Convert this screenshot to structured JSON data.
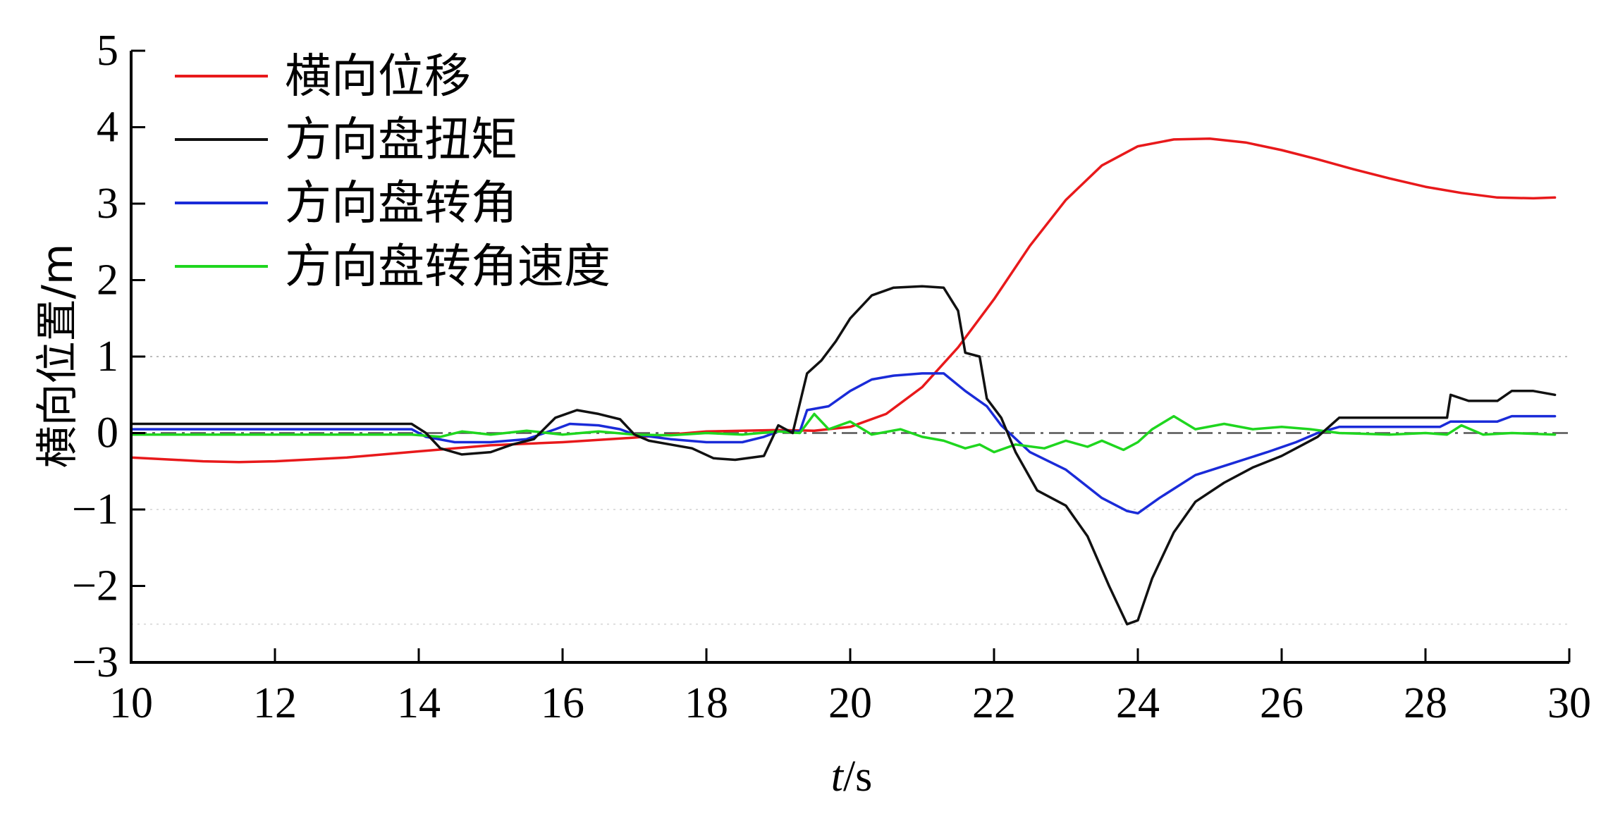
{
  "chart_data": {
    "type": "line",
    "title": "",
    "xlabel": "t/s",
    "xlabel_parts": {
      "var": "t",
      "unit": "/s"
    },
    "ylabel": "横向位置/m",
    "xlim": [
      10,
      30
    ],
    "ylim": [
      -3,
      5
    ],
    "xticks": [
      10,
      12,
      14,
      16,
      18,
      20,
      22,
      24,
      26,
      28,
      30
    ],
    "yticks": [
      5,
      4,
      3,
      2,
      1,
      0,
      -1,
      -2,
      -3
    ],
    "ytick_labels": [
      "5",
      "4",
      "3",
      "2",
      "1",
      "0",
      "−1",
      "−2",
      "−3"
    ],
    "grid": false,
    "legend_position": "top-left",
    "reference_lines": [
      {
        "y": 1,
        "style": "dotted",
        "color": "#bdbdbd"
      },
      {
        "y": -1,
        "style": "dotted",
        "color": "#dddddd"
      },
      {
        "y": -2.5,
        "style": "dotted",
        "color": "#dddddd"
      },
      {
        "y": 0,
        "style": "dashdot",
        "color": "#555555"
      }
    ],
    "series": [
      {
        "name": "横向位移",
        "color": "#e8191b",
        "x": [
          10.0,
          11.0,
          11.5,
          12.0,
          13.0,
          14.0,
          15.0,
          16.0,
          17.0,
          18.0,
          19.0,
          19.5,
          20.0,
          20.5,
          21.0,
          21.5,
          22.0,
          22.5,
          23.0,
          23.5,
          24.0,
          24.5,
          25.0,
          25.5,
          26.0,
          26.5,
          27.0,
          27.5,
          28.0,
          28.5,
          29.0,
          29.5,
          29.8
        ],
        "y": [
          -0.32,
          -0.37,
          -0.38,
          -0.37,
          -0.32,
          -0.24,
          -0.16,
          -0.12,
          -0.06,
          0.02,
          0.04,
          0.03,
          0.08,
          0.25,
          0.6,
          1.12,
          1.75,
          2.45,
          3.05,
          3.5,
          3.75,
          3.84,
          3.85,
          3.8,
          3.7,
          3.58,
          3.45,
          3.33,
          3.22,
          3.14,
          3.08,
          3.07,
          3.08
        ]
      },
      {
        "name": "方向盘扭矩",
        "color": "#111111",
        "x": [
          10.0,
          13.9,
          14.1,
          14.3,
          14.6,
          15.0,
          15.3,
          15.6,
          15.9,
          16.2,
          16.5,
          16.8,
          17.0,
          17.2,
          17.5,
          17.8,
          18.1,
          18.4,
          18.8,
          19.0,
          19.2,
          19.4,
          19.6,
          19.8,
          20.0,
          20.3,
          20.6,
          21.0,
          21.3,
          21.5,
          21.6,
          21.8,
          21.9,
          22.1,
          22.3,
          22.6,
          23.0,
          23.3,
          23.6,
          23.85,
          24.0,
          24.2,
          24.5,
          24.8,
          25.2,
          25.6,
          26.0,
          26.3,
          26.5,
          26.8,
          27.5,
          28.3,
          28.35,
          28.6,
          29.0,
          29.2,
          29.5,
          29.8
        ],
        "y": [
          0.12,
          0.12,
          0.0,
          -0.2,
          -0.28,
          -0.25,
          -0.15,
          -0.08,
          0.2,
          0.3,
          0.25,
          0.18,
          -0.02,
          -0.1,
          -0.15,
          -0.2,
          -0.33,
          -0.35,
          -0.3,
          0.1,
          0.0,
          0.78,
          0.95,
          1.2,
          1.5,
          1.8,
          1.9,
          1.92,
          1.9,
          1.6,
          1.05,
          1.0,
          0.45,
          0.2,
          -0.25,
          -0.75,
          -0.95,
          -1.35,
          -2.0,
          -2.5,
          -2.45,
          -1.9,
          -1.3,
          -0.9,
          -0.65,
          -0.45,
          -0.3,
          -0.15,
          -0.05,
          0.2,
          0.2,
          0.2,
          0.5,
          0.42,
          0.42,
          0.55,
          0.55,
          0.5
        ]
      },
      {
        "name": "方向盘转角",
        "color": "#1a2bd8",
        "x": [
          10.0,
          13.9,
          14.1,
          14.5,
          15.0,
          15.5,
          15.9,
          16.1,
          16.5,
          16.8,
          17.0,
          17.5,
          18.0,
          18.5,
          18.8,
          19.0,
          19.3,
          19.4,
          19.7,
          20.0,
          20.3,
          20.6,
          21.0,
          21.3,
          21.6,
          21.9,
          22.1,
          22.5,
          23.0,
          23.5,
          23.85,
          24.0,
          24.3,
          24.8,
          25.3,
          25.8,
          26.2,
          26.5,
          26.8,
          28.2,
          28.35,
          29.0,
          29.2,
          29.8
        ],
        "y": [
          0.05,
          0.05,
          -0.05,
          -0.12,
          -0.12,
          -0.08,
          0.05,
          0.12,
          0.1,
          0.05,
          -0.02,
          -0.08,
          -0.12,
          -0.12,
          -0.05,
          0.02,
          0.02,
          0.3,
          0.35,
          0.55,
          0.7,
          0.75,
          0.78,
          0.78,
          0.55,
          0.35,
          0.1,
          -0.25,
          -0.48,
          -0.85,
          -1.02,
          -1.05,
          -0.85,
          -0.55,
          -0.4,
          -0.25,
          -0.12,
          0.0,
          0.08,
          0.08,
          0.15,
          0.15,
          0.22,
          0.22
        ]
      },
      {
        "name": "方向盘转角速度",
        "color": "#1fd61f",
        "x": [
          10.0,
          13.9,
          14.3,
          14.6,
          15.0,
          15.5,
          16.0,
          16.5,
          17.0,
          17.5,
          18.0,
          18.5,
          19.0,
          19.3,
          19.5,
          19.7,
          20.0,
          20.3,
          20.7,
          21.0,
          21.3,
          21.6,
          21.8,
          22.0,
          22.3,
          22.7,
          23.0,
          23.3,
          23.5,
          23.8,
          24.0,
          24.2,
          24.5,
          24.8,
          25.2,
          25.6,
          26.0,
          26.4,
          26.8,
          27.5,
          28.0,
          28.3,
          28.5,
          28.8,
          29.2,
          29.8
        ],
        "y": [
          -0.02,
          -0.02,
          -0.05,
          0.02,
          -0.02,
          0.03,
          -0.02,
          0.02,
          -0.02,
          -0.03,
          0.0,
          -0.02,
          0.02,
          0.0,
          0.25,
          0.05,
          0.15,
          -0.02,
          0.05,
          -0.05,
          -0.1,
          -0.2,
          -0.15,
          -0.25,
          -0.15,
          -0.2,
          -0.1,
          -0.18,
          -0.1,
          -0.22,
          -0.12,
          0.05,
          0.22,
          0.05,
          0.12,
          0.05,
          0.08,
          0.05,
          0.0,
          -0.02,
          0.0,
          -0.02,
          0.1,
          -0.02,
          0.0,
          -0.02
        ]
      }
    ]
  }
}
